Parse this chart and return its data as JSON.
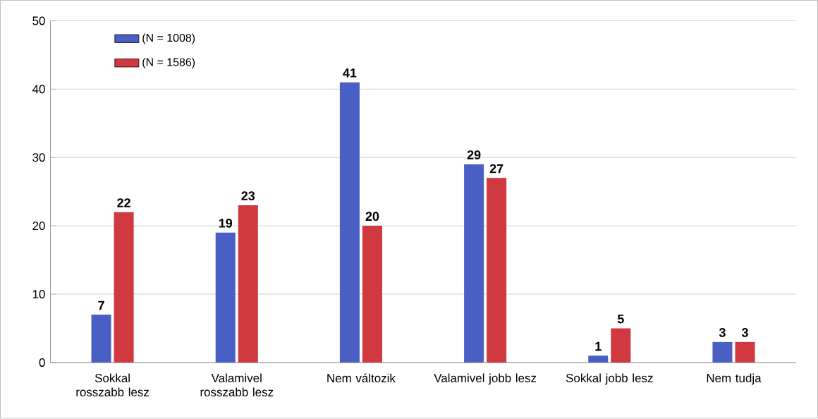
{
  "chart_data": {
    "type": "bar",
    "categories": [
      "Sokkal rosszabb lesz",
      "Valamivel rosszabb lesz",
      "Nem változik",
      "Valamivel jobb lesz",
      "Sokkal jobb lesz",
      "Nem tudja"
    ],
    "series": [
      {
        "name": "(N = 1008)",
        "color": "#4a5fc4",
        "values": [
          7,
          19,
          41,
          29,
          1,
          3
        ]
      },
      {
        "name": "(N = 1586)",
        "color": "#d0393f",
        "values": [
          22,
          23,
          20,
          27,
          5,
          3
        ]
      }
    ],
    "ylim": [
      0,
      50
    ],
    "yticks": [
      0,
      10,
      20,
      30,
      40,
      50
    ],
    "grid": "y",
    "legend": "top left",
    "data_labels": true
  }
}
